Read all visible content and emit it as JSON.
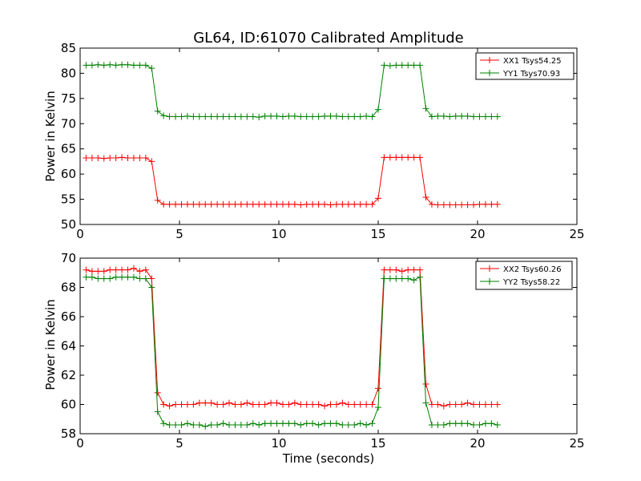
{
  "chart_data": [
    {
      "type": "line",
      "title": "GL64, ID:61070 Calibrated Amplitude",
      "xlabel": "",
      "ylabel": "Power in Kelvin",
      "xlim": [
        0,
        25
      ],
      "ylim": [
        50,
        85
      ],
      "xticks": [
        "0",
        "5",
        "10",
        "15",
        "20",
        "25"
      ],
      "yticks": [
        "50",
        "55",
        "60",
        "65",
        "70",
        "75",
        "80",
        "85"
      ],
      "legend_position": "top-right",
      "series": [
        {
          "name": "XX1 Tsys54.25",
          "color": "#ff0000",
          "x": [
            0.3,
            0.6,
            0.9,
            1.2,
            1.5,
            1.8,
            2.1,
            2.4,
            2.7,
            3.0,
            3.3,
            3.6,
            3.9,
            4.2,
            4.5,
            4.8,
            5.1,
            5.4,
            5.7,
            6.0,
            6.3,
            6.6,
            6.9,
            7.2,
            7.5,
            7.8,
            8.1,
            8.4,
            8.7,
            9.0,
            9.3,
            9.6,
            9.9,
            10.2,
            10.5,
            10.8,
            11.1,
            11.4,
            11.7,
            12.0,
            12.3,
            12.6,
            12.9,
            13.2,
            13.5,
            13.8,
            14.1,
            14.4,
            14.7,
            15.0,
            15.3,
            15.6,
            15.9,
            16.2,
            16.5,
            16.8,
            17.1,
            17.4,
            17.7,
            18.0,
            18.3,
            18.6,
            18.9,
            19.2,
            19.5,
            19.8,
            20.1,
            20.4,
            20.7,
            21.0
          ],
          "y": [
            63.2,
            63.2,
            63.2,
            63.1,
            63.2,
            63.2,
            63.3,
            63.2,
            63.2,
            63.2,
            63.2,
            62.5,
            54.8,
            54.0,
            54.0,
            54.0,
            54.0,
            54.0,
            54.0,
            54.0,
            54.0,
            54.0,
            54.0,
            54.0,
            54.0,
            54.0,
            54.0,
            54.0,
            54.0,
            54.0,
            54.0,
            54.0,
            54.0,
            54.0,
            54.0,
            54.0,
            53.9,
            54.0,
            54.0,
            54.0,
            54.0,
            53.9,
            54.0,
            54.0,
            54.0,
            54.0,
            54.0,
            54.0,
            54.0,
            55.2,
            63.3,
            63.3,
            63.3,
            63.3,
            63.3,
            63.3,
            63.3,
            55.4,
            54.0,
            53.9,
            53.9,
            53.9,
            53.9,
            53.9,
            53.9,
            53.9,
            54.0,
            54.0,
            54.0,
            54.0
          ]
        },
        {
          "name": "YY1 Tsys70.93",
          "color": "#008000",
          "x": [
            0.3,
            0.6,
            0.9,
            1.2,
            1.5,
            1.8,
            2.1,
            2.4,
            2.7,
            3.0,
            3.3,
            3.6,
            3.9,
            4.2,
            4.5,
            4.8,
            5.1,
            5.4,
            5.7,
            6.0,
            6.3,
            6.6,
            6.9,
            7.2,
            7.5,
            7.8,
            8.1,
            8.4,
            8.7,
            9.0,
            9.3,
            9.6,
            9.9,
            10.2,
            10.5,
            10.8,
            11.1,
            11.4,
            11.7,
            12.0,
            12.3,
            12.6,
            12.9,
            13.2,
            13.5,
            13.8,
            14.1,
            14.4,
            14.7,
            15.0,
            15.3,
            15.6,
            15.9,
            16.2,
            16.5,
            16.8,
            17.1,
            17.4,
            17.7,
            18.0,
            18.3,
            18.6,
            18.9,
            19.2,
            19.5,
            19.8,
            20.1,
            20.4,
            20.7,
            21.0
          ],
          "y": [
            81.6,
            81.6,
            81.7,
            81.6,
            81.7,
            81.6,
            81.7,
            81.7,
            81.6,
            81.6,
            81.6,
            81.0,
            72.5,
            71.6,
            71.4,
            71.4,
            71.4,
            71.5,
            71.4,
            71.4,
            71.4,
            71.4,
            71.4,
            71.4,
            71.4,
            71.4,
            71.4,
            71.4,
            71.4,
            71.3,
            71.5,
            71.5,
            71.5,
            71.4,
            71.5,
            71.5,
            71.4,
            71.4,
            71.4,
            71.4,
            71.5,
            71.5,
            71.5,
            71.4,
            71.4,
            71.4,
            71.4,
            71.5,
            71.4,
            72.8,
            81.6,
            81.5,
            81.6,
            81.6,
            81.6,
            81.6,
            81.6,
            73.0,
            71.4,
            71.5,
            71.5,
            71.4,
            71.5,
            71.5,
            71.5,
            71.4,
            71.4,
            71.4,
            71.4,
            71.4
          ]
        }
      ]
    },
    {
      "type": "line",
      "title": "",
      "xlabel": "Time (seconds)",
      "ylabel": "Power in Kelvin",
      "xlim": [
        0,
        25
      ],
      "ylim": [
        58,
        70
      ],
      "xticks": [
        "0",
        "5",
        "10",
        "15",
        "20",
        "25"
      ],
      "yticks": [
        "58",
        "60",
        "62",
        "64",
        "66",
        "68",
        "70"
      ],
      "legend_position": "top-right",
      "series": [
        {
          "name": "XX2 Tsys60.26",
          "color": "#ff0000",
          "x": [
            0.3,
            0.6,
            0.9,
            1.2,
            1.5,
            1.8,
            2.1,
            2.4,
            2.7,
            3.0,
            3.3,
            3.6,
            3.9,
            4.2,
            4.5,
            4.8,
            5.1,
            5.4,
            5.7,
            6.0,
            6.3,
            6.6,
            6.9,
            7.2,
            7.5,
            7.8,
            8.1,
            8.4,
            8.7,
            9.0,
            9.3,
            9.6,
            9.9,
            10.2,
            10.5,
            10.8,
            11.1,
            11.4,
            11.7,
            12.0,
            12.3,
            12.6,
            12.9,
            13.2,
            13.5,
            13.8,
            14.1,
            14.4,
            14.7,
            15.0,
            15.3,
            15.6,
            15.9,
            16.2,
            16.5,
            16.8,
            17.1,
            17.4,
            17.7,
            18.0,
            18.3,
            18.6,
            18.9,
            19.2,
            19.5,
            19.8,
            20.1,
            20.4,
            20.7,
            21.0
          ],
          "y": [
            69.2,
            69.1,
            69.1,
            69.1,
            69.2,
            69.2,
            69.2,
            69.2,
            69.3,
            69.1,
            69.2,
            68.6,
            60.8,
            60.0,
            59.9,
            60.0,
            60.0,
            60.0,
            60.0,
            60.1,
            60.1,
            60.1,
            60.0,
            60.0,
            60.1,
            60.0,
            60.0,
            60.1,
            60.0,
            60.0,
            60.0,
            60.1,
            60.1,
            60.0,
            60.0,
            60.1,
            60.0,
            60.0,
            60.0,
            60.0,
            59.9,
            60.0,
            60.0,
            60.1,
            60.0,
            60.0,
            60.0,
            60.0,
            60.0,
            61.1,
            69.2,
            69.2,
            69.2,
            69.1,
            69.2,
            69.2,
            69.2,
            61.4,
            60.0,
            60.0,
            59.9,
            60.0,
            60.0,
            60.0,
            60.1,
            60.0,
            60.0,
            60.0,
            60.0,
            60.0
          ]
        },
        {
          "name": "YY2 Tsys58.22",
          "color": "#008000",
          "x": [
            0.3,
            0.6,
            0.9,
            1.2,
            1.5,
            1.8,
            2.1,
            2.4,
            2.7,
            3.0,
            3.3,
            3.6,
            3.9,
            4.2,
            4.5,
            4.8,
            5.1,
            5.4,
            5.7,
            6.0,
            6.3,
            6.6,
            6.9,
            7.2,
            7.5,
            7.8,
            8.1,
            8.4,
            8.7,
            9.0,
            9.3,
            9.6,
            9.9,
            10.2,
            10.5,
            10.8,
            11.1,
            11.4,
            11.7,
            12.0,
            12.3,
            12.6,
            12.9,
            13.2,
            13.5,
            13.8,
            14.1,
            14.4,
            14.7,
            15.0,
            15.3,
            15.6,
            15.9,
            16.2,
            16.5,
            16.8,
            17.1,
            17.4,
            17.7,
            18.0,
            18.3,
            18.6,
            18.9,
            19.2,
            19.5,
            19.8,
            20.1,
            20.4,
            20.7,
            21.0
          ],
          "y": [
            68.7,
            68.7,
            68.6,
            68.6,
            68.6,
            68.7,
            68.7,
            68.7,
            68.7,
            68.6,
            68.6,
            68.0,
            59.5,
            58.7,
            58.6,
            58.6,
            58.6,
            58.7,
            58.6,
            58.6,
            58.5,
            58.6,
            58.6,
            58.7,
            58.6,
            58.6,
            58.6,
            58.6,
            58.7,
            58.6,
            58.7,
            58.7,
            58.7,
            58.7,
            58.7,
            58.7,
            58.6,
            58.7,
            58.7,
            58.6,
            58.7,
            58.7,
            58.7,
            58.6,
            58.6,
            58.6,
            58.7,
            58.6,
            58.7,
            59.8,
            68.6,
            68.6,
            68.6,
            68.6,
            68.6,
            68.5,
            68.7,
            60.1,
            58.6,
            58.6,
            58.6,
            58.7,
            58.7,
            58.7,
            58.7,
            58.6,
            58.6,
            58.7,
            58.7,
            58.6
          ]
        }
      ]
    }
  ]
}
